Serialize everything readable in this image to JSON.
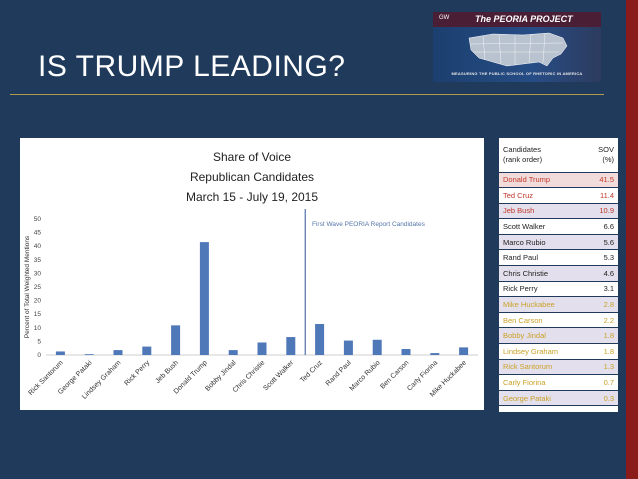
{
  "slide": {
    "title": "IS TRUMP LEADING?"
  },
  "banner": {
    "brand": "GW",
    "title": "The PEORIA PROJECT",
    "subtitle": "MEASURING THE PUBLIC SCHOOL OF RHETORIC IN AMERICA"
  },
  "chart_data": {
    "type": "bar",
    "title": "Share of Voice",
    "subtitle_line1": "Republican Candidates",
    "subtitle_line2": "March 15 - July 19, 2015",
    "xlabel": "",
    "ylabel": "Percent of Total Weighted Mentions",
    "ylim": [
      0,
      50
    ],
    "yticks": [
      "0",
      "5",
      "10",
      "15",
      "20",
      "25",
      "30",
      "35",
      "40",
      "45",
      "50"
    ],
    "categories": [
      "Rick Santorum",
      "George Pataki",
      "Lindsey Graham",
      "Rick Perry",
      "Jeb Bush",
      "Donald Trump",
      "Bobby Jindal",
      "Chris Christie",
      "Scott Walker",
      "Ted Cruz",
      "Rand Paul",
      "Marco Rubio",
      "Ben Carson",
      "Carly Fiorina",
      "Mike Huckabee"
    ],
    "values": [
      1.3,
      0.3,
      1.8,
      3.1,
      10.9,
      41.5,
      1.8,
      4.6,
      6.6,
      11.4,
      5.3,
      5.6,
      2.2,
      0.7,
      2.8
    ],
    "bar_color": "#4f78b8",
    "reference_line": {
      "after_category": "Scott Walker",
      "label": "First Wave PEORIA Report Candidates",
      "color": "#2f5597"
    }
  },
  "table": {
    "header_candidates": "Candidates",
    "header_rank": "(rank order)",
    "header_sov": "SOV",
    "header_unit": "(%)",
    "rows": [
      {
        "name": "Donald Trump",
        "value": "41.5",
        "bg": "#f2dcdb",
        "fg": "#c0392b"
      },
      {
        "name": "Ted Cruz",
        "value": "11.4",
        "bg": "#ffffff",
        "fg": "#c0392b"
      },
      {
        "name": "Jeb Bush",
        "value": "10.9",
        "bg": "#e4dfec",
        "fg": "#c0392b"
      },
      {
        "name": "Scott Walker",
        "value": "6.6",
        "bg": "#ffffff",
        "fg": "#222222"
      },
      {
        "name": "Marco Rubio",
        "value": "5.6",
        "bg": "#e4dfec",
        "fg": "#222222"
      },
      {
        "name": "Rand Paul",
        "value": "5.3",
        "bg": "#ffffff",
        "fg": "#222222"
      },
      {
        "name": "Chris Christie",
        "value": "4.6",
        "bg": "#e4dfec",
        "fg": "#222222"
      },
      {
        "name": "Rick Perry",
        "value": "3.1",
        "bg": "#ffffff",
        "fg": "#222222"
      },
      {
        "name": "Mike Huckabee",
        "value": "2.8",
        "bg": "#e4dfec",
        "fg": "#c9a227"
      },
      {
        "name": "Ben Carson",
        "value": "2.2",
        "bg": "#ffffff",
        "fg": "#c9a227"
      },
      {
        "name": "Bobby Jindal",
        "value": "1.8",
        "bg": "#e4dfec",
        "fg": "#c9a227"
      },
      {
        "name": "Lindsey Graham",
        "value": "1.8",
        "bg": "#ffffff",
        "fg": "#c9a227"
      },
      {
        "name": "Rick Santorum",
        "value": "1.3",
        "bg": "#e4dfec",
        "fg": "#c9a227"
      },
      {
        "name": "Carly Fiorina",
        "value": "0.7",
        "bg": "#ffffff",
        "fg": "#c9a227"
      },
      {
        "name": "George Pataki",
        "value": "0.3",
        "bg": "#e4dfec",
        "fg": "#c9a227"
      }
    ]
  },
  "colors": {
    "background": "#1f3a5a",
    "accent_rule": "#b39a4e",
    "right_bar": "#8b1a1a"
  }
}
